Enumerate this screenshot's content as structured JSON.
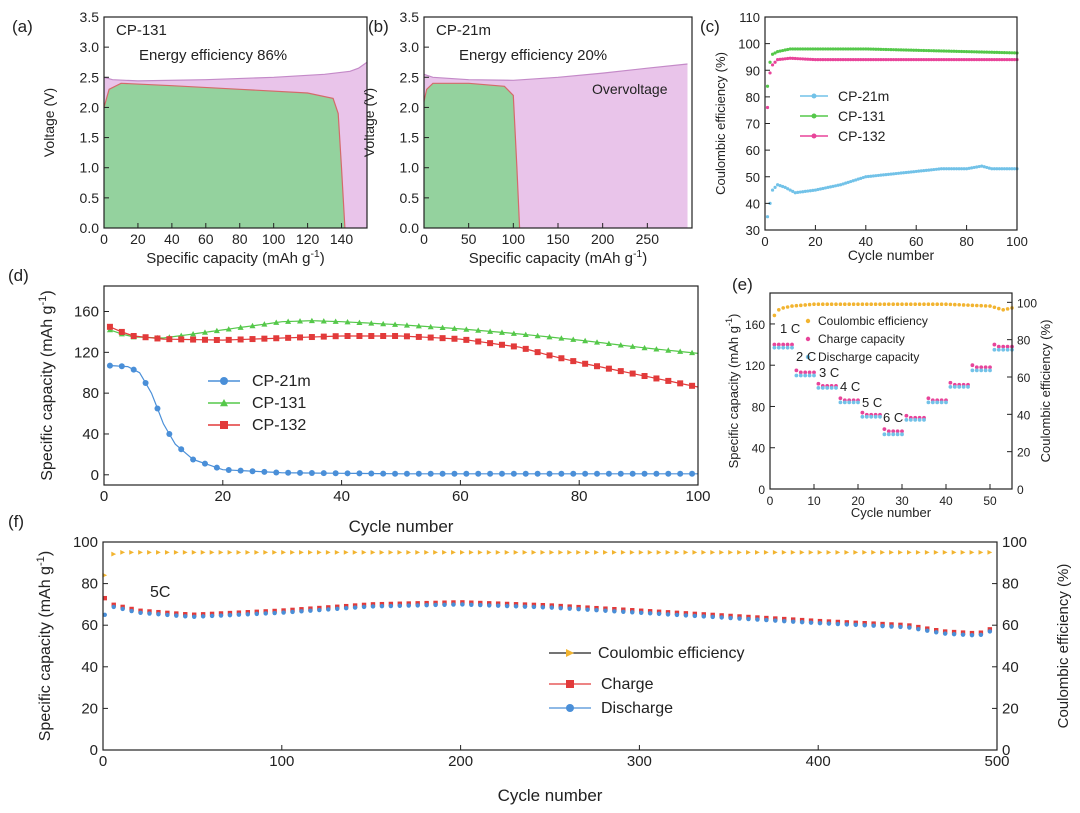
{
  "colors": {
    "axis": "#222222",
    "green": "#55c84a",
    "red": "#e23a3a",
    "blue": "#4a8fd8",
    "orange": "#f2b430",
    "lightblue": "#72c2e8",
    "green_fill": "#8fd39a",
    "pink_fill": "#e9c4ea",
    "pink": "#e8449a"
  },
  "chart_data": [
    {
      "id": "a",
      "panel_label": "(a)",
      "type": "area",
      "title": "CP-131",
      "annotation": "Energy efficiency 86%",
      "xlabel": "Specific capacity (mAh g",
      "xlabel_sup": "-1",
      "xlabel_end": ")",
      "ylabel": "Voltage (V)",
      "xlim": [
        0,
        155
      ],
      "ylim": [
        0,
        3.5
      ],
      "xticks": [
        0,
        20,
        40,
        60,
        80,
        100,
        120,
        140
      ],
      "yticks": [
        0,
        0.5,
        1.0,
        1.5,
        2.0,
        2.5,
        3.0,
        3.5
      ],
      "ytick_labels": [
        "0.0",
        "0.5",
        "1.0",
        "1.5",
        "2.0",
        "2.5",
        "3.0",
        "3.5"
      ],
      "series": [
        {
          "name": "charge",
          "x": [
            0,
            5,
            20,
            60,
            100,
            130,
            145,
            150,
            155
          ],
          "y": [
            2.5,
            2.46,
            2.44,
            2.46,
            2.5,
            2.55,
            2.6,
            2.65,
            2.75
          ]
        },
        {
          "name": "discharge",
          "x": [
            0,
            3,
            10,
            40,
            80,
            120,
            135,
            138,
            140,
            142
          ],
          "y": [
            2.0,
            2.3,
            2.4,
            2.36,
            2.3,
            2.24,
            2.15,
            1.9,
            1.0,
            0.0
          ]
        }
      ]
    },
    {
      "id": "b",
      "panel_label": "(b)",
      "type": "area",
      "title": "CP-21m",
      "annotation": "Energy efficiency 20%",
      "annotation2": "Overvoltage",
      "xlabel": "Specific capacity (mAh g",
      "xlabel_sup": "-1",
      "xlabel_end": ")",
      "ylabel": "Voltage (V)",
      "xlim": [
        0,
        300
      ],
      "ylim": [
        0,
        3.5
      ],
      "xticks": [
        0,
        50,
        100,
        150,
        200,
        250
      ],
      "yticks": [
        0,
        0.5,
        1.0,
        1.5,
        2.0,
        2.5,
        3.0,
        3.5
      ],
      "ytick_labels": [
        "0.0",
        "0.5",
        "1.0",
        "1.5",
        "2.0",
        "2.5",
        "3.0",
        "3.5"
      ],
      "series": [
        {
          "name": "charge",
          "x": [
            0,
            10,
            50,
            100,
            150,
            200,
            250,
            295
          ],
          "y": [
            2.55,
            2.5,
            2.46,
            2.45,
            2.5,
            2.57,
            2.65,
            2.72
          ]
        },
        {
          "name": "discharge",
          "x": [
            0,
            3,
            10,
            50,
            90,
            100,
            104,
            107
          ],
          "y": [
            2.1,
            2.3,
            2.4,
            2.4,
            2.35,
            2.2,
            1.0,
            0.0
          ]
        }
      ]
    },
    {
      "id": "c",
      "panel_label": "(c)",
      "type": "line",
      "xlabel": "Cycle number",
      "ylabel": "Coulombic efficiency (%)",
      "xlim": [
        0,
        100
      ],
      "ylim": [
        30,
        110
      ],
      "xticks": [
        0,
        20,
        40,
        60,
        80,
        100
      ],
      "yticks": [
        30,
        40,
        50,
        60,
        70,
        80,
        90,
        100,
        110
      ],
      "legend": "middle-left",
      "series": [
        {
          "name": "CP-21m",
          "x": [
            1,
            3,
            5,
            8,
            12,
            20,
            30,
            40,
            50,
            60,
            70,
            80,
            86,
            90,
            100
          ],
          "y": [
            35,
            45,
            47,
            46,
            44,
            45,
            47,
            50,
            51,
            52,
            53,
            53,
            54,
            53,
            53
          ]
        },
        {
          "name": "CP-131",
          "x": [
            1,
            2,
            3,
            5,
            10,
            20,
            40,
            60,
            80,
            100
          ],
          "y": [
            84,
            93,
            96,
            97,
            98,
            98,
            98,
            97.5,
            97,
            96.5
          ]
        },
        {
          "name": "CP-132",
          "x": [
            1,
            2,
            3,
            5,
            10,
            20,
            40,
            60,
            80,
            100
          ],
          "y": [
            76,
            89,
            92,
            94,
            94.5,
            94,
            94,
            94,
            94,
            94
          ]
        }
      ]
    },
    {
      "id": "d",
      "panel_label": "(d)",
      "type": "line",
      "xlabel": "Cycle number",
      "ylabel": "Specific capacity (mAh g",
      "ylabel_sup": "-1",
      "ylabel_end": ")",
      "xlim": [
        0,
        100
      ],
      "ylim": [
        -10,
        185
      ],
      "xticks": [
        0,
        20,
        40,
        60,
        80,
        100
      ],
      "yticks": [
        0,
        40,
        80,
        120,
        160
      ],
      "legend": "middle-left",
      "series": [
        {
          "name": "CP-21m",
          "x": [
            1,
            4,
            6,
            8,
            10,
            12,
            15,
            20,
            30,
            50,
            100
          ],
          "y": [
            107,
            106,
            100,
            80,
            50,
            30,
            15,
            5,
            2,
            1,
            1
          ]
        },
        {
          "name": "CP-131",
          "x": [
            1,
            3,
            5,
            10,
            20,
            30,
            35,
            40,
            50,
            60,
            70,
            80,
            90,
            100
          ],
          "y": [
            142,
            138,
            135,
            134,
            142,
            150,
            151,
            150,
            147,
            143,
            138,
            132,
            125,
            119
          ]
        },
        {
          "name": "CP-132",
          "x": [
            1,
            3,
            5,
            10,
            20,
            30,
            40,
            50,
            60,
            70,
            75,
            80,
            90,
            100
          ],
          "y": [
            145,
            140,
            136,
            133,
            132,
            134,
            136,
            136,
            133,
            125,
            117,
            110,
            98,
            86
          ]
        }
      ]
    },
    {
      "id": "e",
      "panel_label": "(e)",
      "type": "scatter",
      "xlabel": "Cycle number",
      "ylabel": "Specific capacity (mAh g",
      "ylabel_sup": "-1",
      "ylabel_end": ")",
      "y2label": "Coulombic efficiency (%)",
      "xlim": [
        0,
        55
      ],
      "ylim": [
        0,
        190
      ],
      "y2lim": [
        0,
        105
      ],
      "xticks": [
        0,
        10,
        20,
        30,
        40,
        50
      ],
      "yticks": [
        0,
        40,
        80,
        120,
        160
      ],
      "y2ticks": [
        0,
        20,
        40,
        60,
        80,
        100
      ],
      "legend": "top-right",
      "rate_labels": [
        "1 C",
        "2 C",
        "3 C",
        "4 C",
        "5 C",
        "6 C"
      ],
      "steps": [
        {
          "start": 1,
          "end": 5,
          "charge": 140,
          "discharge": 138
        },
        {
          "start": 6,
          "end": 10,
          "charge": 113,
          "discharge": 111
        },
        {
          "start": 11,
          "end": 15,
          "charge": 100,
          "discharge": 99
        },
        {
          "start": 16,
          "end": 20,
          "charge": 86,
          "discharge": 85
        },
        {
          "start": 21,
          "end": 25,
          "charge": 72,
          "discharge": 71
        },
        {
          "start": 26,
          "end": 30,
          "charge": 56,
          "discharge": 54
        },
        {
          "start": 31,
          "end": 35,
          "charge": 69,
          "discharge": 68
        },
        {
          "start": 36,
          "end": 40,
          "charge": 86,
          "discharge": 85
        },
        {
          "start": 41,
          "end": 45,
          "charge": 101,
          "discharge": 100
        },
        {
          "start": 46,
          "end": 50,
          "charge": 118,
          "discharge": 116
        },
        {
          "start": 51,
          "end": 55,
          "charge": 138,
          "discharge": 136
        }
      ],
      "series": [
        {
          "name": "Coulombic efficiency",
          "axis": "y2",
          "x": [
            1,
            2,
            3,
            5,
            10,
            20,
            30,
            40,
            50,
            53,
            55
          ],
          "y": [
            93,
            96,
            97,
            98,
            99,
            99,
            99,
            99,
            98,
            96,
            97
          ]
        },
        {
          "name": "Charge capacity",
          "axis": "y"
        },
        {
          "name": "Discharge capacity",
          "axis": "y"
        }
      ]
    },
    {
      "id": "f",
      "panel_label": "(f)",
      "type": "scatter",
      "annotation": "5C",
      "xlabel": "Cycle number",
      "ylabel": "Specific capacity (mAh g",
      "ylabel_sup": "-1",
      "ylabel_end": ")",
      "y2label": "Coulombic efficiency (%)",
      "xlim": [
        0,
        500
      ],
      "ylim": [
        0,
        100
      ],
      "y2lim": [
        0,
        100
      ],
      "xticks": [
        0,
        100,
        200,
        300,
        400,
        500
      ],
      "yticks": [
        0,
        20,
        40,
        60,
        80,
        100
      ],
      "y2ticks": [
        0,
        20,
        40,
        60,
        80,
        100
      ],
      "legend": "center-right",
      "series": [
        {
          "name": "Coulombic efficiency",
          "axis": "y2",
          "x": [
            1,
            2,
            5,
            10,
            100,
            200,
            300,
            400,
            495,
            500
          ],
          "y": [
            84,
            90,
            94,
            95,
            95,
            95,
            95,
            95,
            95,
            95
          ]
        },
        {
          "name": "Charge",
          "axis": "y",
          "x": [
            1,
            5,
            20,
            50,
            100,
            150,
            200,
            250,
            300,
            350,
            400,
            450,
            470,
            490,
            495,
            500
          ],
          "y": [
            73,
            70,
            67,
            65,
            67,
            70,
            71,
            69.5,
            67,
            64.5,
            62,
            60,
            57,
            56,
            58,
            58
          ]
        },
        {
          "name": "Discharge",
          "axis": "y",
          "x": [
            1,
            5,
            20,
            50,
            100,
            150,
            200,
            250,
            300,
            350,
            400,
            450,
            470,
            490,
            495,
            500
          ],
          "y": [
            65,
            69,
            66,
            64,
            66,
            69,
            70,
            68.5,
            66,
            63.5,
            61,
            59,
            56,
            55,
            57,
            57
          ]
        }
      ]
    }
  ]
}
